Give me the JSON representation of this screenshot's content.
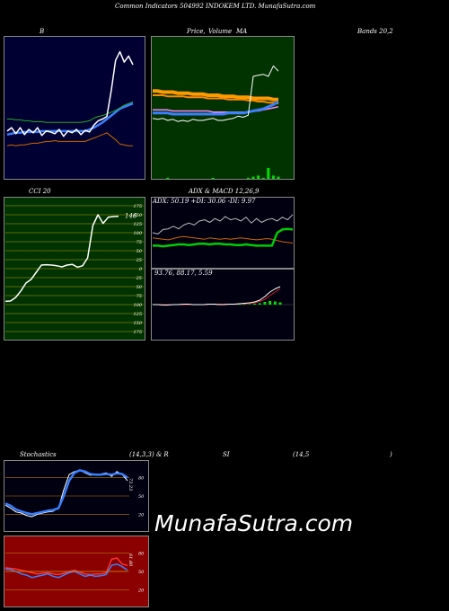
{
  "header": {
    "title": "Common Indicators 504992 INDOKEM LTD. MunafaSutra.com"
  },
  "labels": {
    "bollinger_left": "B",
    "price_mid": "Price,",
    "price_overlap": "Volume",
    "price_ma": "MA",
    "bands_right": "Bands 20,2",
    "cci": "CCI 20",
    "adx_header": "ADX  & MACD 12,26,9",
    "adx_values": "ADX: 50.19  +DI: 30.06  -DI: 9.97",
    "macd_values": "93.76,  88.17,  5.59",
    "stoch_left": "Stochastics",
    "stoch_mid": "(14,3,3) & R",
    "stoch_si": "SI",
    "stoch_rsi": "(14,5",
    "stoch_close": ")"
  },
  "watermark": "MunafaSutra.com",
  "colors": {
    "bollinger_bg": "#000033",
    "price_bg": "#003300",
    "cci_bg": "#003300",
    "adx_bg": "#000011",
    "stoch_bg": "#000011",
    "rsi_bg": "#8b0000"
  },
  "chart_data": [
    {
      "type": "line",
      "name": "bollinger",
      "series": [
        {
          "values": [
            48,
            52,
            45,
            52,
            44,
            50,
            46,
            52,
            43,
            48,
            47,
            45,
            50,
            42,
            48,
            46,
            50,
            44,
            49,
            47,
            55,
            60,
            62,
            65,
            95,
            130,
            140,
            128,
            135,
            125
          ]
        },
        {
          "values": [
            44,
            45,
            46,
            46,
            47,
            47,
            47,
            47,
            48,
            48,
            48,
            48,
            48,
            48,
            48,
            48,
            48,
            48,
            48,
            50,
            52,
            55,
            58,
            62,
            66,
            70,
            74,
            76,
            78,
            80
          ]
        },
        {
          "values": [
            62,
            62,
            61,
            61,
            60,
            60,
            59,
            59,
            59,
            58,
            58,
            58,
            58,
            58,
            58,
            58,
            58,
            58,
            59,
            60,
            63,
            65,
            66,
            68,
            70,
            72,
            75,
            78,
            80,
            82
          ]
        },
        {
          "values": [
            31,
            32,
            31,
            32,
            32,
            33,
            34,
            34,
            35,
            36,
            36,
            37,
            36,
            36,
            36,
            36,
            36,
            36,
            36,
            38,
            40,
            42,
            44,
            46,
            42,
            38,
            33,
            32,
            31,
            31
          ]
        }
      ]
    },
    {
      "type": "line",
      "name": "price_ma",
      "series": [
        {
          "values": [
            50,
            49,
            50,
            48,
            49,
            47,
            48,
            47,
            49,
            48,
            48,
            49,
            50,
            48,
            48,
            49,
            50,
            52,
            51,
            53,
            90,
            91,
            92,
            90,
            100,
            95
          ]
        },
        {
          "values": [
            76,
            76,
            75,
            75,
            75,
            74,
            74,
            74,
            73,
            73,
            73,
            72,
            72,
            72,
            71,
            71,
            71,
            70,
            70,
            70,
            69,
            69,
            69,
            69,
            68,
            68
          ]
        },
        {
          "values": [
            72,
            72,
            72,
            71,
            71,
            71,
            71,
            70,
            70,
            70,
            70,
            69,
            69,
            69,
            69,
            68,
            68,
            68,
            68,
            67,
            67,
            66,
            66,
            65,
            65,
            64
          ]
        },
        {
          "values": [
            58,
            58,
            58,
            58,
            57,
            57,
            57,
            57,
            57,
            57,
            57,
            57,
            56,
            56,
            56,
            56,
            56,
            56,
            56,
            56,
            57,
            57,
            58,
            59,
            60,
            61
          ]
        },
        {
          "values": [
            55,
            55,
            55,
            55,
            54,
            54,
            54,
            54,
            54,
            54,
            54,
            54,
            54,
            54,
            54,
            55,
            55,
            55,
            55,
            56,
            57,
            58,
            59,
            61,
            63,
            66
          ]
        },
        {
          "values": [
            0,
            0,
            0,
            1,
            0,
            0,
            0,
            0,
            0,
            0,
            0,
            0,
            1,
            0,
            0,
            0,
            0,
            0,
            0,
            1,
            2,
            3,
            1,
            10,
            3,
            2
          ]
        }
      ]
    },
    {
      "type": "line",
      "name": "cci",
      "ylim": [
        -175,
        175
      ],
      "ticks": [
        175,
        150,
        125,
        100,
        75,
        50,
        25,
        0,
        -25,
        -50,
        -75,
        -100,
        -125,
        -150,
        -175
      ],
      "tick_labels": [
        "175",
        "150",
        "125",
        "100",
        "75",
        "50",
        "25",
        "0",
        "25",
        "50",
        "75",
        "100",
        "125",
        "150",
        "175"
      ],
      "value_label": "146",
      "values": [
        -91,
        -90,
        -80,
        -62,
        -40,
        -30,
        -10,
        10,
        11,
        10,
        8,
        5,
        10,
        12,
        4,
        8,
        30,
        120,
        150,
        126,
        143,
        145,
        146
      ]
    },
    {
      "type": "line",
      "name": "adx",
      "series": [
        {
          "values": [
            50,
            48,
            55,
            56,
            60,
            56,
            62,
            65,
            62,
            68,
            70,
            66,
            72,
            68,
            75,
            70,
            72,
            68,
            74,
            65,
            72,
            66,
            70,
            72,
            68,
            74,
            70,
            78
          ]
        },
        {
          "values": [
            30,
            30,
            29,
            30,
            31,
            32,
            32,
            31,
            32,
            33,
            33,
            32,
            33,
            33,
            32,
            32,
            31,
            31,
            32,
            31,
            30,
            30,
            30,
            30,
            50,
            55,
            56,
            55
          ]
        },
        {
          "values": [
            42,
            41,
            40,
            39,
            41,
            43,
            44,
            43,
            42,
            41,
            40,
            42,
            41,
            40,
            41,
            40,
            41,
            42,
            41,
            40,
            39,
            40,
            41,
            40,
            38,
            36,
            35,
            34
          ]
        },
        {
          "values": [
            60,
            58,
            55,
            58,
            62,
            64,
            60,
            58,
            56,
            55,
            54,
            53,
            53,
            54,
            55,
            56,
            56,
            57,
            58,
            60,
            61,
            60,
            60,
            58,
            54,
            50,
            47,
            45
          ]
        }
      ]
    },
    {
      "type": "bar",
      "name": "macd",
      "series": [
        {
          "values": [
            0,
            0,
            -1,
            -1,
            0,
            0,
            1,
            1,
            0,
            0,
            0,
            1,
            1,
            0,
            0,
            1,
            1,
            2,
            3,
            4,
            6,
            10,
            18,
            28,
            35,
            40
          ]
        },
        {
          "values": [
            0,
            0,
            0,
            0,
            0,
            0,
            0,
            0,
            0,
            0,
            0,
            1,
            1,
            1,
            1,
            1,
            1,
            2,
            2,
            3,
            4,
            7,
            12,
            20,
            28,
            35
          ]
        },
        {
          "values": [
            0,
            0,
            0,
            0,
            0,
            0,
            0,
            0,
            0,
            0,
            0,
            0,
            0,
            0,
            0,
            0,
            0,
            0,
            1,
            1,
            2,
            3,
            6,
            8,
            7,
            5
          ]
        }
      ]
    },
    {
      "type": "line",
      "name": "stochastics",
      "ylim": [
        0,
        100
      ],
      "ticks": [
        80,
        50,
        20
      ],
      "value_label": "73.23",
      "series": [
        {
          "values": [
            35,
            30,
            24,
            22,
            18,
            16,
            20,
            22,
            24,
            25,
            30,
            60,
            85,
            90,
            92,
            88,
            84,
            85,
            86,
            88,
            82,
            90,
            85,
            75
          ]
        },
        {
          "values": [
            38,
            34,
            28,
            25,
            22,
            20,
            22,
            24,
            26,
            27,
            30,
            50,
            75,
            88,
            92,
            90,
            86,
            85,
            85,
            86,
            85,
            87,
            86,
            80
          ]
        }
      ]
    },
    {
      "type": "line",
      "name": "rsi",
      "ylim": [
        0,
        100
      ],
      "ticks": [
        80,
        50,
        20
      ],
      "value_label": "61.80",
      "series": [
        {
          "values": [
            56,
            55,
            54,
            52,
            50,
            48,
            46,
            47,
            48,
            46,
            45,
            47,
            50,
            52,
            49,
            46,
            45,
            46,
            46,
            48,
            70,
            72,
            62,
            60
          ]
        },
        {
          "values": [
            54,
            53,
            50,
            46,
            44,
            40,
            42,
            44,
            46,
            42,
            40,
            44,
            48,
            50,
            46,
            42,
            44,
            42,
            43,
            45,
            60,
            62,
            58,
            52
          ]
        },
        {
          "values": [
            50,
            50,
            50,
            50,
            50,
            50,
            50,
            50,
            50,
            50,
            50,
            50,
            50,
            50,
            50,
            50,
            50,
            50,
            50,
            50,
            50,
            50,
            50,
            50
          ]
        }
      ]
    }
  ]
}
